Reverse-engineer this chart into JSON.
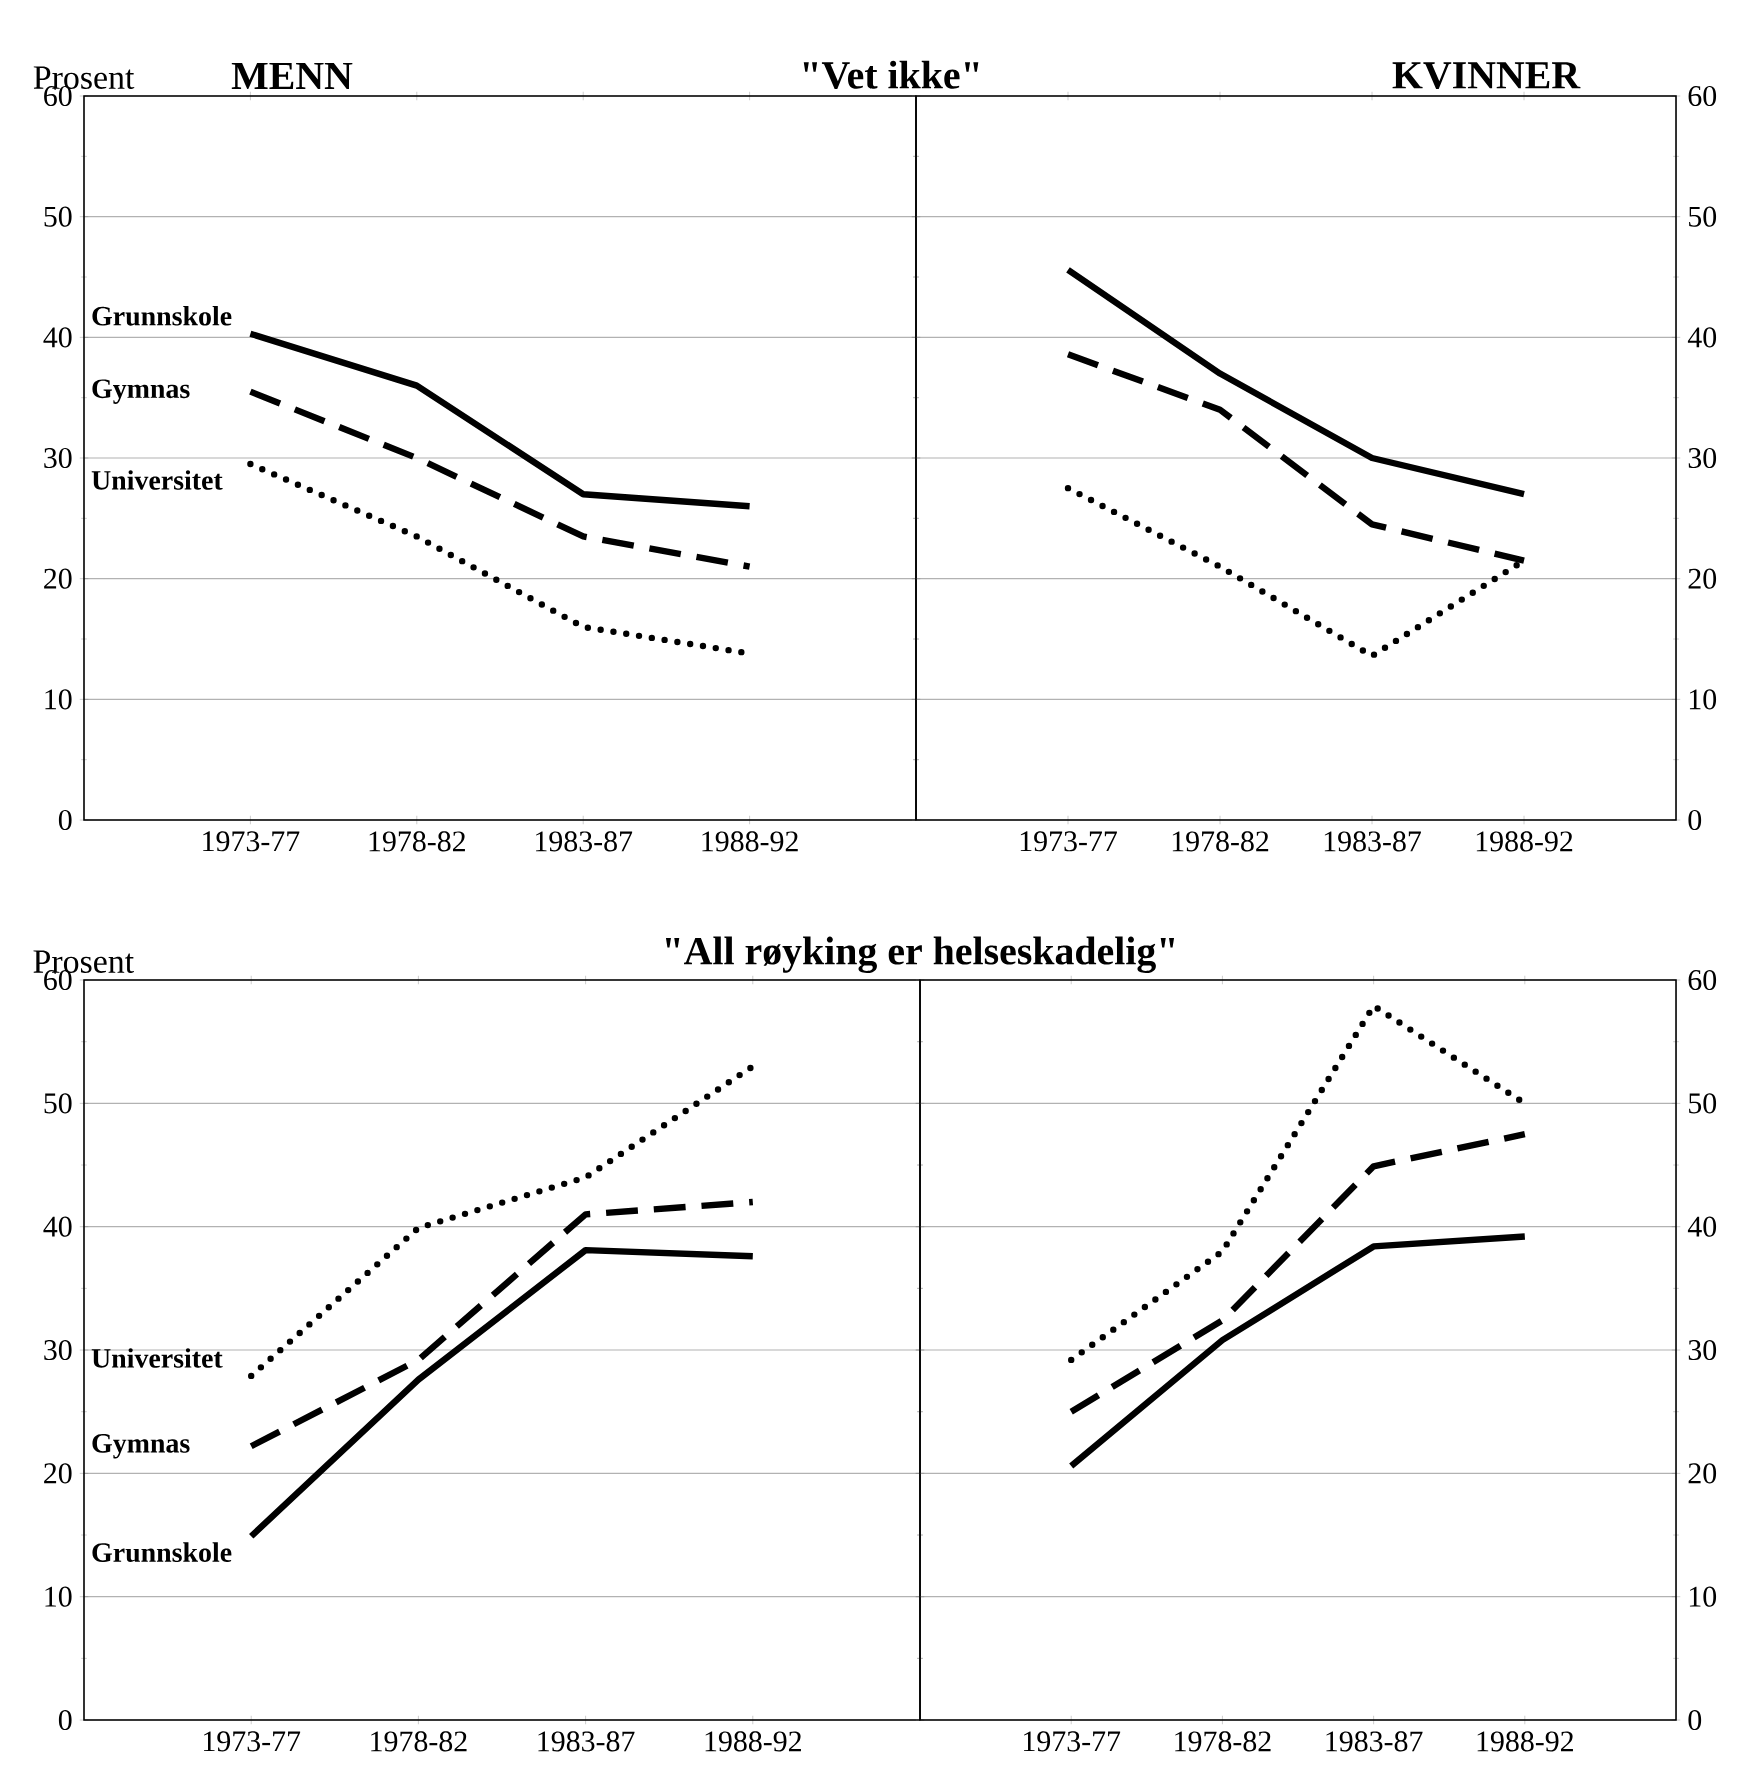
{
  "chart_data": [
    {
      "type": "line",
      "title": "MENN",
      "subtitle": "\"Vet ikke\"",
      "ylabel": "Prosent",
      "categories": [
        "1973-77",
        "1978-82",
        "1983-87",
        "1988-92"
      ],
      "ylim": [
        0,
        60
      ],
      "yticks": [
        0,
        10,
        20,
        30,
        40,
        50,
        60
      ],
      "grid": "y",
      "series": [
        {
          "name": "Grunnskole",
          "color": "#000000",
          "line_style": "solid",
          "values": [
            40.3,
            36,
            27,
            26
          ]
        },
        {
          "name": "Gymnas",
          "color": "#000000",
          "line_style": "dashed",
          "values": [
            35.5,
            30,
            23.5,
            21
          ]
        },
        {
          "name": "Universitet",
          "color": "#000000",
          "line_style": "dotted",
          "values": [
            29.5,
            23.5,
            16,
            13.8
          ]
        }
      ]
    },
    {
      "type": "line",
      "title": "KVINNER",
      "categories": [
        "1973-77",
        "1978-82",
        "1983-87",
        "1988-92"
      ],
      "ylim": [
        0,
        60
      ],
      "yticks": [
        0,
        10,
        20,
        30,
        40,
        50,
        60
      ],
      "grid": "y",
      "series": [
        {
          "color": "#000000",
          "line_style": "solid",
          "values": [
            45.6,
            37,
            30,
            27
          ]
        },
        {
          "color": "#000000",
          "line_style": "dashed",
          "values": [
            38.6,
            34,
            24.5,
            21.5
          ]
        },
        {
          "color": "#000000",
          "line_style": "dotted",
          "values": [
            27.5,
            21,
            13.6,
            21.5
          ]
        }
      ]
    },
    {
      "type": "line",
      "title": "\"All røyking er helseskadelig\"",
      "ylabel": "Prosent",
      "categories": [
        "1973-77",
        "1978-82",
        "1983-87",
        "1988-92"
      ],
      "ylim": [
        0,
        60
      ],
      "yticks": [
        0,
        10,
        20,
        30,
        40,
        50,
        60
      ],
      "grid": "y",
      "series": [
        {
          "name": "Universitet",
          "color": "#000000",
          "line_style": "dotted",
          "values": [
            27.9,
            39.9,
            44,
            53
          ]
        },
        {
          "name": "Gymnas",
          "color": "#000000",
          "line_style": "dashed",
          "values": [
            22.2,
            29.2,
            41,
            42
          ]
        },
        {
          "name": "Grunnskole",
          "color": "#000000",
          "line_style": "solid",
          "values": [
            14.9,
            27.6,
            38.1,
            37.6
          ]
        }
      ]
    },
    {
      "type": "line",
      "categories": [
        "1973-77",
        "1978-82",
        "1983-87",
        "1988-92"
      ],
      "ylim": [
        0,
        60
      ],
      "yticks": [
        0,
        10,
        20,
        30,
        40,
        50,
        60
      ],
      "grid": "y",
      "series": [
        {
          "color": "#000000",
          "line_style": "dotted",
          "values": [
            29.2,
            38,
            57.9,
            50
          ]
        },
        {
          "color": "#000000",
          "line_style": "dashed",
          "values": [
            25,
            32.4,
            44.9,
            47.5
          ]
        },
        {
          "color": "#000000",
          "line_style": "solid",
          "values": [
            20.6,
            30.8,
            38.4,
            39.2
          ]
        }
      ]
    }
  ]
}
